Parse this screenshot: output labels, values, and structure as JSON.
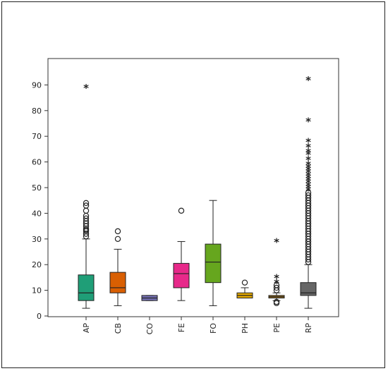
{
  "colors": {
    "AP": "#1f9e77",
    "CB": "#d95f02",
    "CO": "#7570b3",
    "FE": "#e7298a",
    "FO": "#66a61e",
    "PH": "#e6ab02",
    "PE": "#a6761d",
    "RP": "#666666"
  },
  "chart_data": {
    "type": "boxplot",
    "title": "",
    "xlabel": "",
    "ylabel": "",
    "ylim": [
      0,
      100
    ],
    "yticks": [
      0,
      10,
      20,
      30,
      40,
      50,
      60,
      70,
      80,
      90
    ],
    "grid": false,
    "categories": [
      "AP",
      "CB",
      "CO",
      "FE",
      "FO",
      "PH",
      "PE",
      "RP"
    ],
    "boxes": [
      {
        "name": "AP",
        "whisker_low": 3,
        "q1": 6,
        "median": 9,
        "q3": 16,
        "whisker_high": 30,
        "outliers": [
          31,
          32,
          33,
          33.5,
          34,
          35,
          36,
          37,
          38,
          39,
          41,
          43,
          44
        ],
        "extremes": [
          89
        ]
      },
      {
        "name": "CB",
        "whisker_low": 4,
        "q1": 9,
        "median": 11,
        "q3": 17,
        "whisker_high": 26,
        "outliers": [
          30,
          33
        ],
        "extremes": []
      },
      {
        "name": "CO",
        "whisker_low": 6,
        "q1": 6,
        "median": 7,
        "q3": 8,
        "whisker_high": 8,
        "outliers": [],
        "extremes": []
      },
      {
        "name": "FE",
        "whisker_low": 6,
        "q1": 11,
        "median": 16.5,
        "q3": 20.5,
        "whisker_high": 29,
        "outliers": [
          41
        ],
        "extremes": []
      },
      {
        "name": "FO",
        "whisker_low": 4,
        "q1": 13,
        "median": 21,
        "q3": 28,
        "whisker_high": 45,
        "outliers": [],
        "extremes": []
      },
      {
        "name": "PH",
        "whisker_low": 7,
        "q1": 7,
        "median": 8,
        "q3": 9,
        "whisker_high": 11,
        "outliers": [
          13
        ],
        "extremes": []
      },
      {
        "name": "PE",
        "whisker_low": 6,
        "q1": 7,
        "median": 7.5,
        "q3": 8,
        "whisker_high": 9,
        "outliers": [
          5,
          5.5,
          10,
          11,
          12
        ],
        "extremes": [
          13,
          15,
          29
        ]
      },
      {
        "name": "RP",
        "whisker_low": 3,
        "q1": 8,
        "median": 9,
        "q3": 13,
        "whisker_high": 20,
        "outliers": [
          21,
          22,
          23,
          24,
          25,
          26,
          27,
          28,
          29,
          30,
          31,
          32,
          33,
          34,
          35,
          36,
          37,
          38,
          39,
          40,
          41,
          42,
          43,
          44,
          45,
          46,
          47,
          48
        ],
        "extremes": [
          49,
          50,
          51,
          52,
          53,
          54,
          55,
          56,
          57,
          58,
          59,
          61,
          63,
          64,
          66,
          68,
          76,
          92
        ]
      }
    ]
  }
}
